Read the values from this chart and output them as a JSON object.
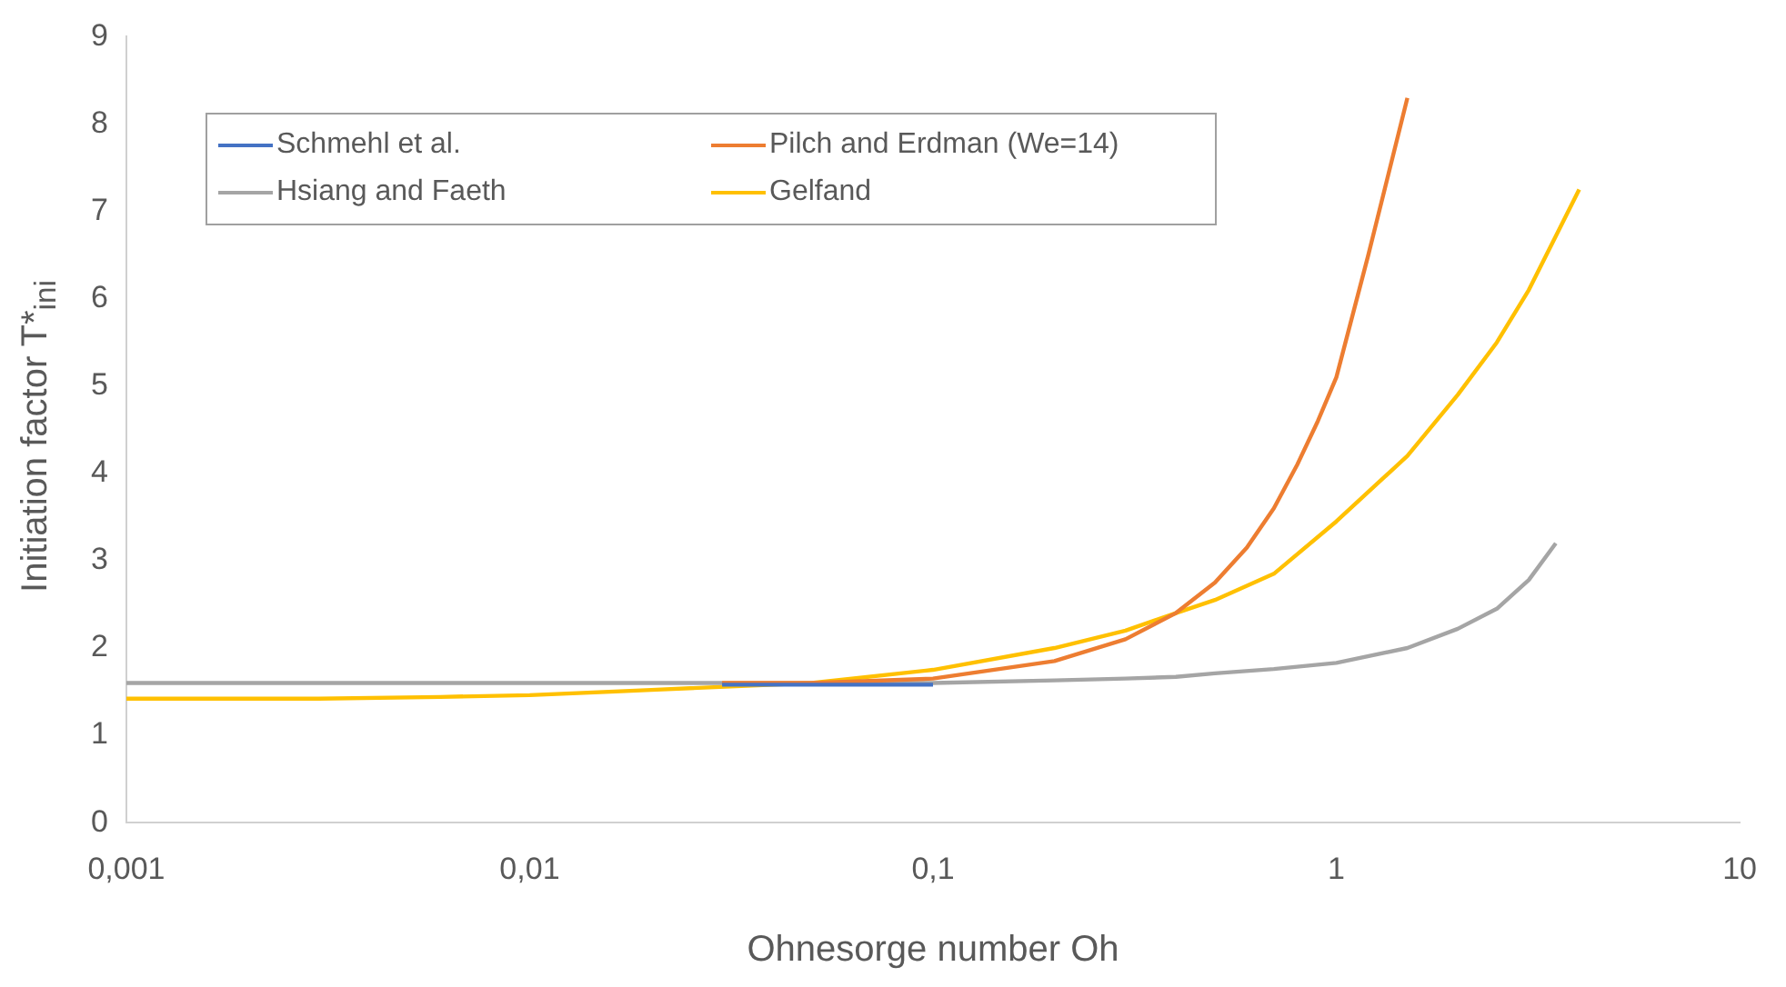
{
  "chart_data": {
    "type": "line",
    "xlabel": "Ohnesorge number Oh",
    "ylabel": "Initiation factor T*$_{ini}$",
    "log": "x",
    "grid": false,
    "legend": "top left",
    "marker": "none",
    "line_style": "solid",
    "xlim": [
      0.001,
      10
    ],
    "xticks": [
      {
        "value": 0.001,
        "label": "0,001"
      },
      {
        "value": 0.01,
        "label": "0,01"
      },
      {
        "value": 0.1,
        "label": "0,1"
      },
      {
        "value": 1,
        "label": "1"
      },
      {
        "value": 10,
        "label": "10"
      }
    ],
    "ylim": [
      0,
      9
    ],
    "yticks": [
      0,
      1,
      2,
      3,
      4,
      5,
      6,
      7,
      8,
      9
    ],
    "series": [
      {
        "name": "Schmehl et al.",
        "color": "#4472c4",
        "x": [
          0.03,
          0.05,
          0.1
        ],
        "values": [
          1.58,
          1.58,
          1.58
        ]
      },
      {
        "name": "Pilch and Erdman (We=14)",
        "color": "#ed7d31",
        "x": [
          0.03,
          0.05,
          0.1,
          0.2,
          0.3,
          0.4,
          0.5,
          0.6,
          0.7,
          0.8,
          0.9,
          1,
          1.2,
          1.5
        ],
        "values": [
          1.6,
          1.6,
          1.65,
          1.85,
          2.1,
          2.4,
          2.75,
          3.15,
          3.6,
          4.1,
          4.6,
          5.1,
          6.5,
          8.3
        ]
      },
      {
        "name": "Hsiang and Faeth",
        "color": "#a5a5a5",
        "x": [
          0.001,
          0.01,
          0.1,
          0.2,
          0.3,
          0.4,
          0.5,
          0.7,
          1,
          1.5,
          2,
          2.5,
          3,
          3.5
        ],
        "values": [
          1.6,
          1.6,
          1.6,
          1.63,
          1.65,
          1.67,
          1.71,
          1.76,
          1.83,
          2.0,
          2.22,
          2.45,
          2.78,
          3.2
        ]
      },
      {
        "name": "Gelfand",
        "color": "#ffc000",
        "x": [
          0.001,
          0.003,
          0.006,
          0.01,
          0.02,
          0.05,
          0.1,
          0.2,
          0.3,
          0.4,
          0.5,
          0.7,
          1,
          1.5,
          2,
          2.5,
          3,
          4
        ],
        "values": [
          1.42,
          1.42,
          1.44,
          1.46,
          1.52,
          1.6,
          1.75,
          2.0,
          2.2,
          2.4,
          2.55,
          2.85,
          3.45,
          4.2,
          4.9,
          5.5,
          6.1,
          7.25
        ]
      }
    ]
  }
}
